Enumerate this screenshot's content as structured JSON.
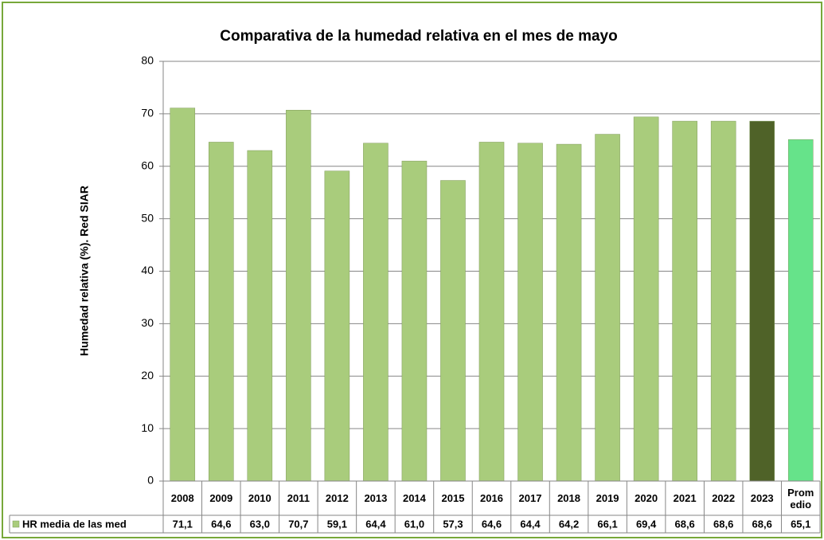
{
  "chart_data": {
    "type": "bar",
    "title": "Comparativa de la humedad relativa en el mes de  mayo",
    "y_label": "Humedad relativa (%). Red SIAR",
    "categories": [
      "2008",
      "2009",
      "2010",
      "2011",
      "2012",
      "2013",
      "2014",
      "2015",
      "2016",
      "2017",
      "2018",
      "2019",
      "2020",
      "2021",
      "2022",
      "2023",
      "Promedio"
    ],
    "series": [
      {
        "name": "HR media de las med",
        "color": "#a9cc7c",
        "colors": [
          "#a9cc7c",
          "#a9cc7c",
          "#a9cc7c",
          "#a9cc7c",
          "#a9cc7c",
          "#a9cc7c",
          "#a9cc7c",
          "#a9cc7c",
          "#a9cc7c",
          "#a9cc7c",
          "#a9cc7c",
          "#a9cc7c",
          "#a9cc7c",
          "#a9cc7c",
          "#a9cc7c",
          "#4f6228",
          "#66e38a"
        ],
        "values": [
          71.1,
          64.6,
          63.0,
          70.7,
          59.1,
          64.4,
          61.0,
          57.3,
          64.6,
          64.4,
          64.2,
          66.1,
          69.4,
          68.6,
          68.6,
          68.6,
          65.1
        ],
        "value_labels": [
          "71,1",
          "64,6",
          "63,0",
          "70,7",
          "59,1",
          "64,4",
          "61,0",
          "57,3",
          "64,6",
          "64,4",
          "64,2",
          "66,1",
          "69,4",
          "68,6",
          "68,6",
          "68,6",
          "65,1"
        ]
      }
    ],
    "ylim": [
      0,
      80
    ],
    "yticks": [
      0,
      10,
      20,
      30,
      40,
      50,
      60,
      70,
      80
    ],
    "grid": true,
    "data_table": true
  }
}
